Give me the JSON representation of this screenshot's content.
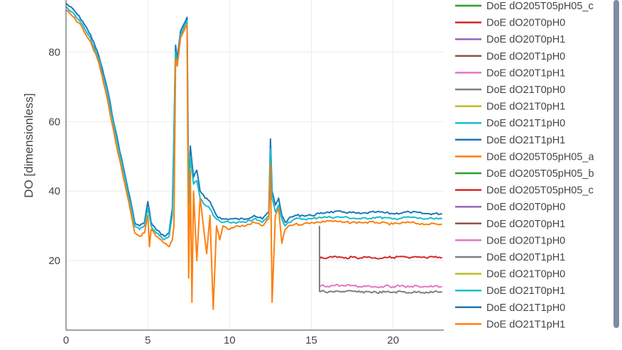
{
  "chart_data": {
    "type": "line",
    "title": "",
    "xlabel": "",
    "ylabel": "DO [dimensionless]",
    "xlim": [
      0,
      23.1
    ],
    "ylim": [
      0,
      95
    ],
    "x_ticks": [
      "0",
      "5",
      "10",
      "15",
      "20"
    ],
    "y_ticks": [
      "20",
      "40",
      "60",
      "80"
    ],
    "grid": true,
    "legend_position": "right",
    "legend": [
      {
        "name": "DoE dO205T05pH05_c",
        "color": "#2ca02c"
      },
      {
        "name": "DoE dO20T0pH0",
        "color": "#d62728"
      },
      {
        "name": "DoE dO20T0pH1",
        "color": "#9467bd"
      },
      {
        "name": "DoE dO20T1pH0",
        "color": "#8c564b"
      },
      {
        "name": "DoE dO20T1pH1",
        "color": "#e377c2"
      },
      {
        "name": "DoE dO21T0pH0",
        "color": "#7f7f7f"
      },
      {
        "name": "DoE dO21T0pH1",
        "color": "#bcbd22"
      },
      {
        "name": "DoE dO21T1pH0",
        "color": "#17becf"
      },
      {
        "name": "DoE dO21T1pH1",
        "color": "#1f77b4"
      },
      {
        "name": "DoE dO205T05pH05_a",
        "color": "#ff7f0e"
      },
      {
        "name": "DoE dO205T05pH05_b",
        "color": "#2ca02c"
      },
      {
        "name": "DoE dO205T05pH05_c",
        "color": "#d62728"
      },
      {
        "name": "DoE dO20T0pH0",
        "color": "#9467bd"
      },
      {
        "name": "DoE dO20T0pH1",
        "color": "#8c564b"
      },
      {
        "name": "DoE dO20T1pH0",
        "color": "#e377c2"
      },
      {
        "name": "DoE dO20T1pH1",
        "color": "#7f7f7f"
      },
      {
        "name": "DoE dO21T0pH0",
        "color": "#bcbd22"
      },
      {
        "name": "DoE dO21T0pH1",
        "color": "#17becf"
      },
      {
        "name": "DoE dO21T1pH0",
        "color": "#1f77b4"
      },
      {
        "name": "DoE dO21T1pH1",
        "color": "#ff7f0e"
      }
    ],
    "series": [
      {
        "color": "#1f77b4",
        "x": [
          0,
          0.5,
          1,
          1.5,
          2,
          2.5,
          3,
          3.5,
          4,
          4.2,
          4.5,
          4.8,
          5,
          5.2,
          5.5,
          6,
          6.3,
          6.5,
          6.6,
          6.7,
          6.8,
          7,
          7.2,
          7.4,
          7.5,
          7.6,
          7.8,
          8,
          8.2,
          8.5,
          8.8,
          9,
          9.2,
          9.5,
          10,
          10.5,
          11,
          11.5,
          12,
          12.4,
          12.5,
          12.6,
          12.8,
          13,
          13.2,
          13.4,
          13.6,
          14,
          14.5,
          15,
          15.5,
          16,
          17,
          18,
          19,
          20,
          21,
          22,
          23
        ],
        "y": [
          94,
          92,
          89,
          85,
          79,
          70,
          58,
          47,
          36,
          31,
          30,
          31,
          37,
          31,
          29,
          27,
          28,
          35,
          57,
          82,
          78,
          86,
          88,
          90,
          38,
          53,
          44,
          46,
          40,
          38,
          37,
          35,
          33,
          32,
          32,
          32,
          32,
          33,
          32,
          34,
          55,
          40,
          36,
          38,
          33,
          31,
          32,
          33,
          33,
          33,
          33.5,
          34,
          34,
          33.5,
          34,
          33.5,
          34,
          33.5,
          33.5
        ]
      },
      {
        "color": "#17becf",
        "x": [
          0,
          0.5,
          1,
          1.5,
          2,
          2.5,
          3,
          3.5,
          4,
          4.2,
          4.5,
          4.8,
          5,
          5.2,
          5.5,
          6,
          6.3,
          6.5,
          6.6,
          6.7,
          6.8,
          7,
          7.2,
          7.4,
          7.5,
          7.6,
          7.8,
          8,
          8.2,
          8.5,
          8.8,
          9,
          9.2,
          9.5,
          10,
          10.5,
          11,
          11.5,
          12,
          12.4,
          12.5,
          12.6,
          12.8,
          13,
          13.2,
          13.4,
          13.6,
          14,
          14.5,
          15,
          15.5,
          16,
          17,
          18,
          19,
          20,
          21,
          22,
          23
        ],
        "y": [
          93,
          91,
          88,
          84,
          78,
          69,
          57,
          46,
          35,
          30,
          29,
          30,
          35,
          30,
          28,
          26,
          27,
          33,
          55,
          80,
          76,
          85,
          87,
          89,
          36,
          50,
          42,
          43,
          38,
          36,
          35,
          33,
          32,
          31,
          31,
          31,
          31,
          32,
          31,
          33,
          52,
          38,
          34,
          36,
          32,
          30,
          31,
          32,
          32,
          32,
          32.5,
          32.5,
          32.5,
          32,
          32.5,
          32,
          32.5,
          32,
          32
        ]
      },
      {
        "color": "#ff7f0e",
        "x": [
          0,
          0.5,
          1,
          1.5,
          2,
          2.5,
          3,
          3.5,
          4,
          4.2,
          4.5,
          4.8,
          5,
          5.1,
          5.2,
          5.5,
          6,
          6.3,
          6.5,
          6.6,
          6.7,
          6.8,
          7,
          7.2,
          7.4,
          7.5,
          7.6,
          7.7,
          7.8,
          8,
          8.2,
          8.4,
          8.6,
          8.8,
          9,
          9.2,
          9.4,
          9.6,
          10,
          10.5,
          11,
          11.5,
          12,
          12.4,
          12.5,
          12.6,
          12.8,
          13,
          13.2,
          13.4,
          13.6,
          14,
          14.5,
          15,
          15.5,
          16,
          17,
          18,
          19,
          20,
          21,
          22,
          23
        ],
        "y": [
          92,
          90,
          87,
          83,
          77,
          67,
          55,
          44,
          33,
          28,
          27,
          28,
          33,
          24,
          29,
          27,
          25,
          24,
          26,
          30,
          78,
          76,
          84,
          86,
          88,
          15,
          46,
          8,
          40,
          20,
          38,
          30,
          22,
          33,
          6,
          30,
          26,
          30,
          29,
          30,
          30,
          31,
          30,
          32,
          48,
          8,
          33,
          35,
          25,
          29,
          30,
          30.5,
          30.5,
          31,
          31,
          31.5,
          31,
          31,
          31,
          30.5,
          31,
          30.5,
          30.5
        ]
      },
      {
        "color": "#d62728",
        "x": [
          15.5,
          15.6,
          16,
          16.5,
          17,
          17.5,
          18,
          18.5,
          19,
          19.5,
          20,
          20.5,
          21,
          21.5,
          22,
          22.5,
          23
        ],
        "y": [
          20.5,
          21,
          20.8,
          21.2,
          20.7,
          21,
          20.8,
          21.1,
          20.6,
          21,
          20.9,
          21.2,
          20.7,
          21,
          20.8,
          21,
          20.8
        ]
      },
      {
        "color": "#e377c2",
        "x": [
          15.5,
          15.6,
          16,
          16.5,
          17,
          17.5,
          18,
          18.5,
          19,
          19.5,
          20,
          20.5,
          21,
          21.5,
          22,
          22.5,
          23
        ],
        "y": [
          12.5,
          12.8,
          12.6,
          13,
          12.7,
          12.9,
          12.5,
          12.8,
          12.4,
          12.7,
          12.5,
          12.8,
          12.4,
          12.7,
          12.5,
          12.6,
          12.5
        ]
      },
      {
        "color": "#7f7f7f",
        "x": [
          15.5,
          15.6,
          16,
          16.5,
          17,
          17.5,
          18,
          18.5,
          19,
          19.5,
          20,
          20.5,
          21,
          21.5,
          22,
          22.5,
          23
        ],
        "y": [
          11,
          11.2,
          10.8,
          11.3,
          11,
          11.2,
          10.9,
          11.1,
          10.8,
          11,
          10.9,
          11.1,
          10.8,
          11,
          10.9,
          11,
          10.9
        ]
      }
    ]
  },
  "scrollbar": {
    "color": "#7f8aa3"
  }
}
